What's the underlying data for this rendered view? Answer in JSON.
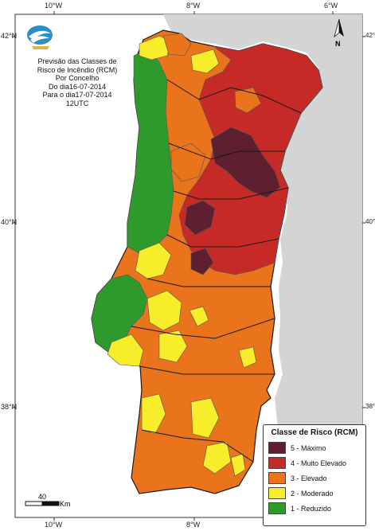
{
  "title": {
    "lines": [
      "Previsão das Classes de",
      "Risco de Incêndio (RCM)",
      "Por Concelho",
      "Do dia16-07-2014",
      "Para o dia17-07-2014",
      "12UTC"
    ]
  },
  "axes": {
    "top": [
      "10°W",
      "8°W",
      "6°W"
    ],
    "bottom": [
      "10°W",
      "8°W"
    ],
    "left": [
      "42°N",
      "40°N",
      "38°N"
    ],
    "right": [
      "42°N",
      "40°N",
      "38°N"
    ]
  },
  "legend": {
    "title": "Classe de Risco (RCM)",
    "items": [
      {
        "label": "5 - Máximo",
        "color": "#5e1f2e"
      },
      {
        "label": "4 - Muito Elevado",
        "color": "#c62a27"
      },
      {
        "label": "3 - Elevado",
        "color": "#e9741c"
      },
      {
        "label": "2 - Moderado",
        "color": "#f7ed2a"
      },
      {
        "label": "1 - Reduzido",
        "color": "#2f9a2c"
      }
    ]
  },
  "scale": {
    "value": "40",
    "unit": "Km"
  },
  "north": {
    "label": "N"
  },
  "colors": {
    "land_gray": "#d4d4d4",
    "sea": "#ffffff",
    "border": "#1a1a1a"
  },
  "icons": {
    "logo": "ipma-logo-icon",
    "north": "north-arrow-icon"
  }
}
